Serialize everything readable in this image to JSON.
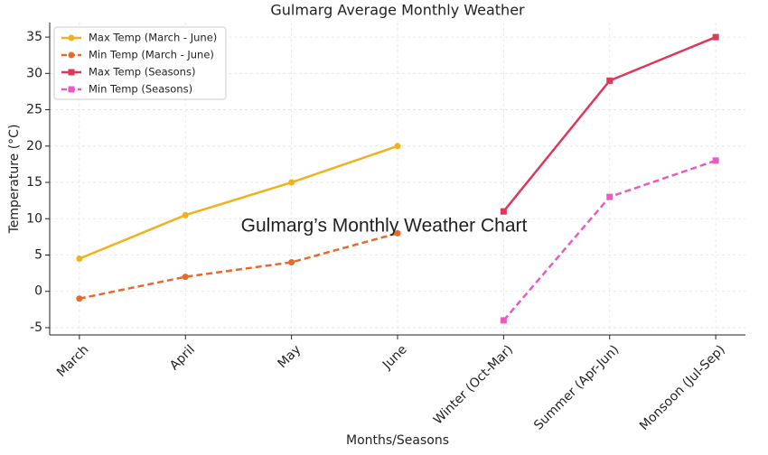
{
  "chart_data": {
    "type": "line",
    "title": "Gulmarg Average Monthly Weather",
    "annotation": "Gulmarg’s Monthly Weather Chart",
    "x_label": "Months/Seasons",
    "y_label": "Temperature (°C)",
    "categories": [
      "March",
      "April",
      "May",
      "June",
      "Winter (Oct-Mar)",
      "Summer (Apr-Jun)",
      "Monsoon (Jul-Sep)"
    ],
    "series": [
      {
        "name": "Max Temp (March - June)",
        "color": "#f0b21c",
        "dash": false,
        "marker": "circle",
        "values": [
          4.5,
          10.5,
          15,
          20,
          null,
          null,
          null
        ]
      },
      {
        "name": "Min Temp (March - June)",
        "color": "#e8692c",
        "dash": true,
        "marker": "circle",
        "values": [
          -1,
          2,
          4,
          8,
          null,
          null,
          null
        ]
      },
      {
        "name": "Max Temp (Seasons)",
        "color": "#e0365a",
        "dash": false,
        "marker": "square",
        "values": [
          null,
          null,
          null,
          null,
          11,
          29,
          35
        ]
      },
      {
        "name": "Min Temp (Seasons)",
        "color": "#e85cc0",
        "dash": true,
        "marker": "square",
        "values": [
          null,
          null,
          null,
          null,
          -4,
          13,
          18
        ]
      }
    ],
    "ylim": [
      -6,
      37
    ],
    "yticks": [
      -5,
      0,
      5,
      10,
      15,
      20,
      25,
      30,
      35
    ],
    "grid": true,
    "legend": "upper left"
  }
}
